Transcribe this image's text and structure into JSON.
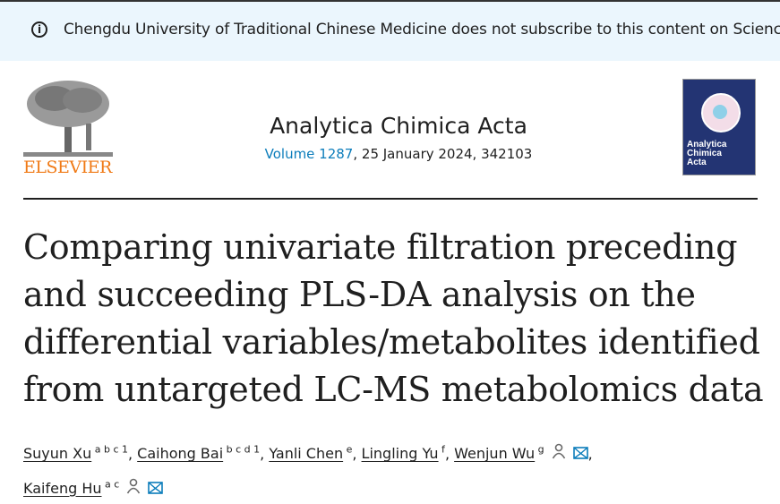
{
  "banner": {
    "icon": "info-icon",
    "message": "Chengdu University of Traditional Chinese Medicine does not subscribe to this content on ScienceDirect."
  },
  "publisher": {
    "logo_text": "ELSEVIER"
  },
  "journal": {
    "name": "Analytica Chimica Acta",
    "volume_link": "Volume 1287",
    "details": ", 25 January 2024, 342103",
    "cover_text": "Analytica Chimica Acta"
  },
  "article": {
    "title": "Comparing univariate filtration preceding and succeeding PLS-DA analysis on the differential variables/metabolites identified from untargeted LC-MS metabolomics data"
  },
  "authors": [
    {
      "name": "Suyun Xu",
      "aff": "a b c 1",
      "icons": false
    },
    {
      "name": "Caihong Bai",
      "aff": "b c d 1",
      "icons": false
    },
    {
      "name": "Yanli Chen",
      "aff": "e",
      "icons": false
    },
    {
      "name": "Lingling Yu",
      "aff": "f",
      "icons": false
    },
    {
      "name": "Wenjun Wu",
      "aff": "g",
      "icons": true
    },
    {
      "name": "Kaifeng Hu",
      "aff": "a c",
      "icons": true
    }
  ],
  "colors": {
    "link": "#0c7dbb",
    "banner_bg": "#ebf6fd",
    "elsevier_orange": "#f07a16",
    "cover_bg": "#233473"
  }
}
